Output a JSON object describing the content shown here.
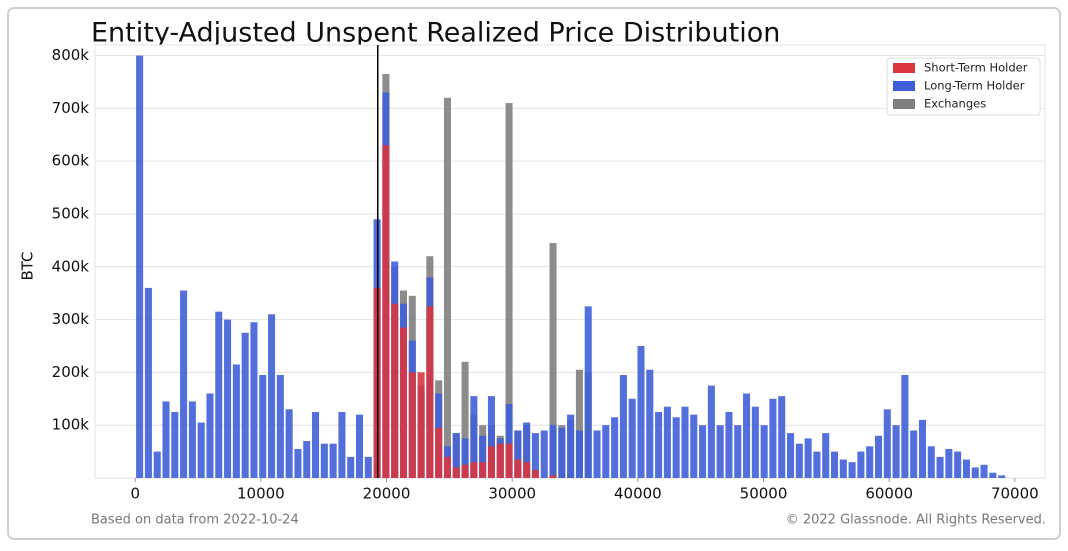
{
  "chart_data": {
    "type": "histogram",
    "title": "Entity-Adjusted Unspent Realized Price Distribution",
    "y_label": "BTC",
    "watermark": "glassnode",
    "footer_left": "Based on data from 2022-10-24",
    "footer_right": "© 2022 Glassnode. All Rights Reserved.",
    "bins": [
      0,
      700,
      1400,
      2100,
      2800,
      3500,
      4200,
      4900,
      5600,
      6300,
      7000,
      7700,
      8400,
      9100,
      9800,
      10500,
      11200,
      11900,
      12600,
      13300,
      14000,
      14700,
      15400,
      16100,
      16800,
      17500,
      18200,
      18900,
      19600,
      20300,
      21000,
      21700,
      22400,
      23100,
      23800,
      24500,
      25200,
      25900,
      26600,
      27300,
      28000,
      28700,
      29400,
      30100,
      30800,
      31500,
      32200,
      32900,
      33600,
      34300,
      35000,
      35700,
      36400,
      37100,
      37800,
      38500,
      39200,
      39900,
      40600,
      41300,
      42000,
      42700,
      43400,
      44100,
      44800,
      45500,
      46200,
      46900,
      47600,
      48300,
      49000,
      49700,
      50400,
      51100,
      51800,
      52500,
      53200,
      53900,
      54600,
      55300,
      56000,
      56700,
      57400,
      58100,
      58800,
      59500,
      60200,
      60900,
      61600,
      62300,
      63000,
      63700,
      64400,
      65100,
      65800,
      66500,
      67200,
      67900,
      68600,
      69300,
      70000
    ],
    "series": [
      {
        "name": "Exchanges",
        "color": "#7f7f7f",
        "values": [
          0,
          0,
          0,
          0,
          0,
          0,
          0,
          0,
          0,
          0,
          0,
          0,
          0,
          0,
          0,
          0,
          0,
          0,
          0,
          0,
          0,
          0,
          0,
          0,
          0,
          0,
          0,
          0,
          765000,
          400000,
          355000,
          345000,
          160000,
          420000,
          185000,
          720000,
          85000,
          220000,
          120000,
          100000,
          100000,
          80000,
          710000,
          90000,
          100000,
          0,
          0,
          445000,
          100000,
          110000,
          205000,
          200000,
          0,
          0,
          0,
          0,
          0,
          0,
          0,
          0,
          0,
          0,
          0,
          0,
          0,
          0,
          0,
          0,
          0,
          0,
          0,
          0,
          0,
          0,
          0,
          0,
          0,
          0,
          0,
          0,
          0,
          0,
          0,
          0,
          0,
          0,
          0,
          0,
          0,
          0,
          0,
          0,
          0,
          0,
          0,
          0,
          0,
          0,
          0,
          0
        ]
      },
      {
        "name": "Long-Term Holder",
        "color": "#3f5fd8",
        "values": [
          800000,
          360000,
          50000,
          145000,
          125000,
          355000,
          145000,
          105000,
          160000,
          315000,
          300000,
          215000,
          275000,
          295000,
          195000,
          310000,
          195000,
          130000,
          55000,
          70000,
          125000,
          65000,
          65000,
          125000,
          40000,
          120000,
          40000,
          490000,
          730000,
          410000,
          330000,
          260000,
          175000,
          380000,
          160000,
          60000,
          85000,
          75000,
          155000,
          80000,
          155000,
          75000,
          140000,
          90000,
          105000,
          85000,
          90000,
          100000,
          95000,
          120000,
          90000,
          325000,
          90000,
          100000,
          115000,
          195000,
          150000,
          250000,
          205000,
          125000,
          135000,
          115000,
          135000,
          120000,
          100000,
          175000,
          100000,
          125000,
          100000,
          160000,
          135000,
          100000,
          150000,
          155000,
          85000,
          65000,
          75000,
          50000,
          85000,
          50000,
          35000,
          30000,
          50000,
          60000,
          80000,
          130000,
          100000,
          195000,
          90000,
          110000,
          60000,
          40000,
          55000,
          50000,
          35000,
          20000,
          25000,
          10000,
          5000,
          0
        ]
      },
      {
        "name": "Short-Term Holder",
        "color": "#d9363e",
        "values": [
          0,
          0,
          0,
          0,
          0,
          0,
          0,
          0,
          0,
          0,
          0,
          0,
          0,
          0,
          0,
          0,
          0,
          0,
          0,
          0,
          0,
          0,
          0,
          0,
          0,
          0,
          0,
          360000,
          630000,
          330000,
          285000,
          200000,
          200000,
          325000,
          95000,
          40000,
          20000,
          25000,
          30000,
          30000,
          60000,
          65000,
          65000,
          35000,
          30000,
          15000,
          0,
          5000,
          0,
          0,
          0,
          0,
          0,
          0,
          0,
          0,
          0,
          0,
          0,
          0,
          0,
          0,
          0,
          0,
          0,
          0,
          0,
          0,
          0,
          0,
          0,
          0,
          0,
          0,
          0,
          0,
          0,
          0,
          0,
          0,
          0,
          0,
          0,
          0,
          0,
          0,
          0,
          0,
          0,
          0,
          0,
          0,
          0,
          0,
          0,
          0,
          0,
          0,
          0,
          0
        ]
      }
    ],
    "legend_order": [
      2,
      1,
      0
    ],
    "reference_line": 19300,
    "xlim": [
      -3200,
      72400
    ],
    "ylim": [
      0,
      820000
    ],
    "xticks": [
      0,
      10000,
      20000,
      30000,
      40000,
      50000,
      60000,
      70000
    ],
    "yticks": [
      {
        "value": 100000,
        "label": "100k"
      },
      {
        "value": 200000,
        "label": "200k"
      },
      {
        "value": 300000,
        "label": "300k"
      },
      {
        "value": 400000,
        "label": "400k"
      },
      {
        "value": 500000,
        "label": "500k"
      },
      {
        "value": 600000,
        "label": "600k"
      },
      {
        "value": 700000,
        "label": "700k"
      },
      {
        "value": 800000,
        "label": "800k"
      }
    ],
    "grid": true
  }
}
